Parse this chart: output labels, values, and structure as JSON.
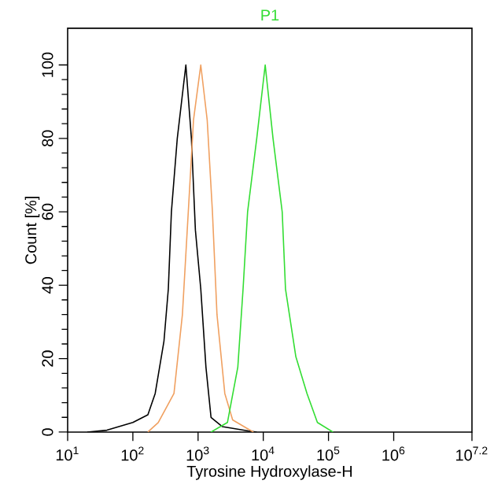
{
  "chart_data": {
    "type": "line",
    "title": "P1",
    "xlabel": "Tyrosine Hydroxylase-H",
    "ylabel": "Count [%]",
    "log": "x",
    "xlim": [
      10,
      15848932
    ],
    "ylim": [
      0,
      110
    ],
    "xticks": [
      {
        "value": 10,
        "label": "10$^{1}$"
      },
      {
        "value": 100,
        "label": "10$^{2}$"
      },
      {
        "value": 1000,
        "label": "10$^{3}$"
      },
      {
        "value": 10000,
        "label": "10$^{4}$"
      },
      {
        "value": 100000,
        "label": "10$^{5}$"
      },
      {
        "value": 1000000,
        "label": "10$^{6}$"
      },
      {
        "value": 15848932,
        "label": "10$^{7.2}$"
      }
    ],
    "yticks": [
      0,
      20,
      40,
      60,
      80,
      100
    ],
    "series": [
      {
        "color": "#000000",
        "x": [
          20,
          40,
          100,
          170,
          220,
          300,
          350,
          390,
          480,
          650,
          790,
          910,
          1100,
          1320,
          1580,
          2340,
          5890,
          7940
        ],
        "values": [
          0,
          0.5,
          2.6,
          4.7,
          10.5,
          24.8,
          39,
          60,
          80,
          100,
          80,
          55,
          39,
          17.7,
          4,
          1.5,
          0.3,
          0
        ]
      },
      {
        "color": "#f0a060",
        "x": [
          170,
          245,
          427,
          575,
          708,
          851,
          1100,
          1380,
          1660,
          1950,
          2570,
          3390,
          5890,
          7080
        ],
        "values": [
          0,
          2.6,
          10.5,
          32,
          60,
          85,
          100,
          85,
          60,
          32,
          10.5,
          3.3,
          0.8,
          0
        ]
      },
      {
        "color": "#33dd33",
        "x": [
          1580,
          2820,
          4070,
          4900,
          5750,
          7940,
          10700,
          14100,
          19500,
          21900,
          31600,
          46800,
          67600,
          117000
        ],
        "values": [
          0,
          2.6,
          17.7,
          39,
          60,
          80,
          100,
          80,
          60,
          39,
          20.5,
          10.5,
          2.6,
          0
        ]
      }
    ]
  }
}
